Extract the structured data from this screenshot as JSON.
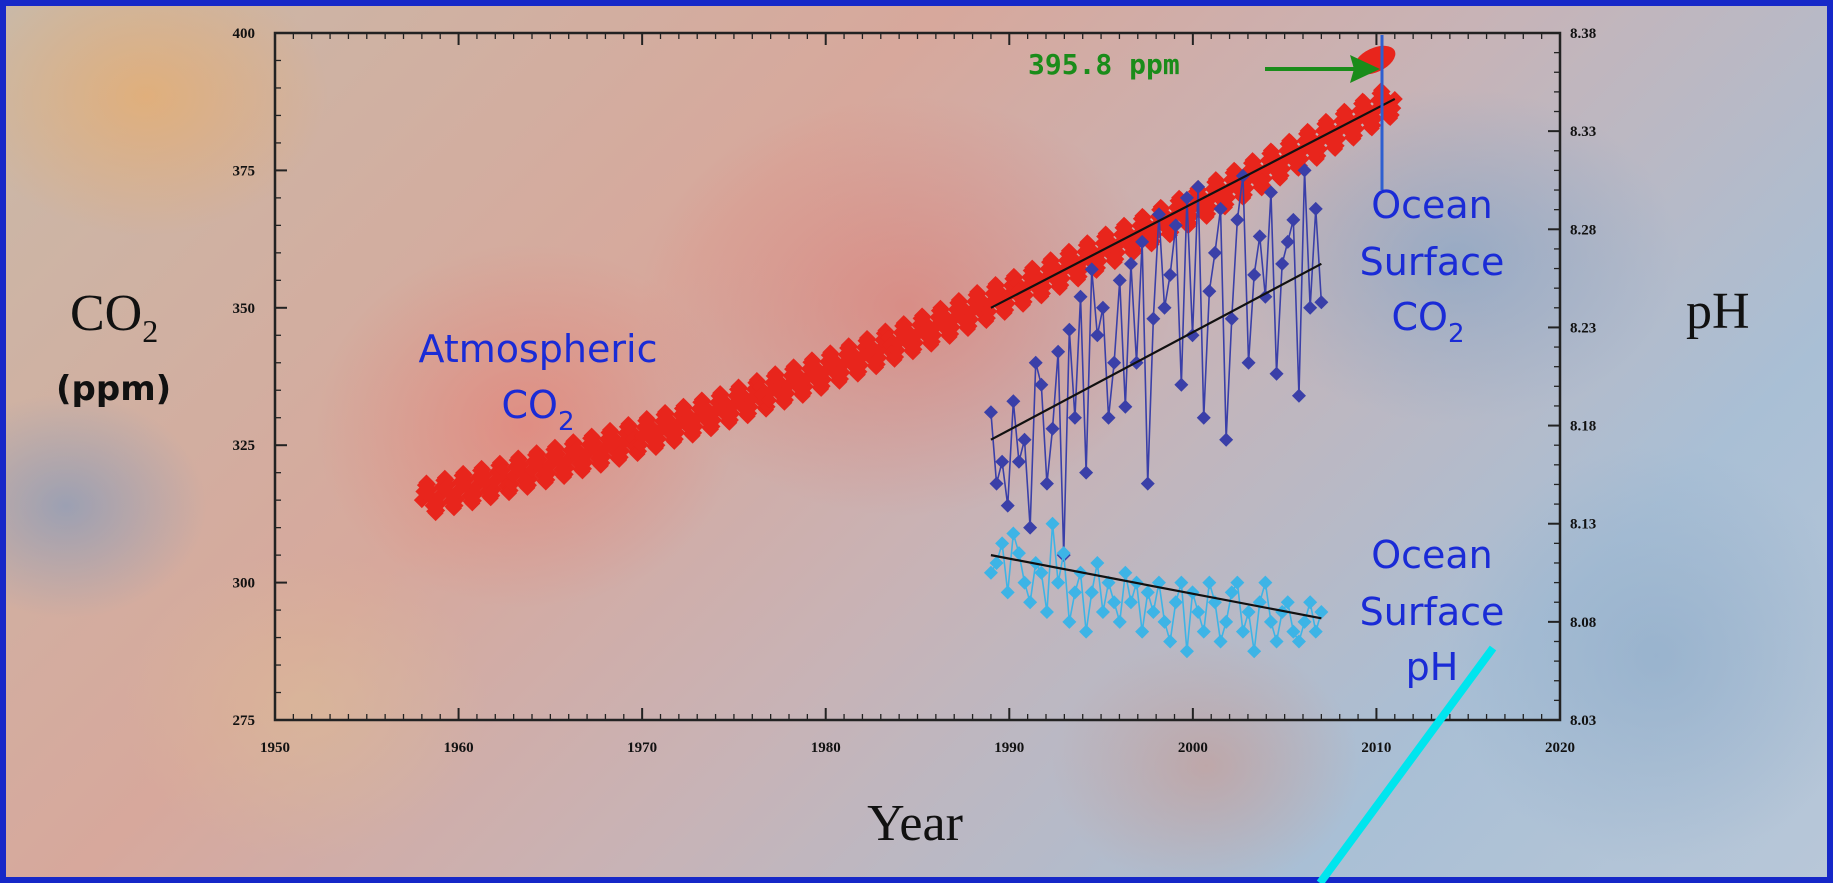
{
  "chart_data": {
    "type": "scatter",
    "xlabel": "Year",
    "ylabel_left": {
      "main": "CO",
      "sub": "2",
      "unit": "(ppm)"
    },
    "ylabel_right": "pH",
    "xlim": [
      1950,
      2020
    ],
    "ylim_left": [
      275,
      400
    ],
    "ylim_right": [
      8.03,
      8.38
    ],
    "x_ticks": [
      "1950",
      "1960",
      "1970",
      "1980",
      "1990",
      "2000",
      "2010",
      "2020"
    ],
    "y_left_ticks": [
      "400",
      "375",
      "350",
      "325",
      "300",
      "275"
    ],
    "y_right_ticks": [
      "8.38",
      "8.33",
      "8.28",
      "8.23",
      "8.18",
      "8.13",
      "8.08",
      "8.03"
    ],
    "annotations": {
      "atmospheric": {
        "line1": "Atmospheric",
        "line2_main": "CO",
        "line2_sub": "2"
      },
      "ocean_co2": {
        "line1": "Ocean",
        "line2": "Surface",
        "line3_main": "CO",
        "line3_sub": "2"
      },
      "ocean_ph": {
        "line1": "Ocean",
        "line2": "Surface",
        "line3": "pH"
      },
      "callout": "395.8 ppm",
      "callout_year": 2011,
      "callout_value": 395.8
    },
    "colors": {
      "atmospheric": "#e8251c",
      "ocean_co2": "#3a3fa8",
      "ocean_ph": "#3db4e6",
      "trend": "#111111",
      "callout": "#1a8c1a",
      "marker_line": "#2e5fd0",
      "annotation_text": "#1a2bd6",
      "cyan_line": "#00e5ee"
    },
    "series": [
      {
        "name": "Atmospheric CO2",
        "axis": "left",
        "trend_start": 315,
        "trend_end": 388,
        "x_start": 1958,
        "x_end": 2011
      },
      {
        "name": "Ocean Surface CO2",
        "axis": "left",
        "x_start": 1989,
        "x_end": 2007,
        "values": [
          331,
          318,
          322,
          314,
          333,
          322,
          326,
          310,
          340,
          336,
          318,
          328,
          342,
          305,
          346,
          330,
          352,
          320,
          357,
          345,
          350,
          330,
          340,
          355,
          332,
          358,
          340,
          362,
          318,
          348,
          367,
          350,
          356,
          365,
          336,
          370,
          345,
          372,
          330,
          353,
          360,
          368,
          326,
          348,
          366,
          374,
          340,
          356,
          363,
          352,
          371,
          338,
          358,
          362,
          366,
          334,
          375,
          350,
          368,
          351
        ]
      },
      {
        "name": "Ocean Surface pH",
        "axis": "right",
        "x_start": 1989,
        "x_end": 2007,
        "values": [
          8.105,
          8.11,
          8.12,
          8.095,
          8.125,
          8.115,
          8.1,
          8.09,
          8.11,
          8.105,
          8.085,
          8.13,
          8.1,
          8.115,
          8.08,
          8.095,
          8.105,
          8.075,
          8.095,
          8.11,
          8.085,
          8.1,
          8.09,
          8.08,
          8.105,
          8.09,
          8.1,
          8.075,
          8.095,
          8.085,
          8.1,
          8.08,
          8.07,
          8.09,
          8.1,
          8.065,
          8.095,
          8.085,
          8.075,
          8.1,
          8.09,
          8.07,
          8.08,
          8.095,
          8.1,
          8.075,
          8.085,
          8.065,
          8.09,
          8.1,
          8.08,
          8.07,
          8.085,
          8.09,
          8.075,
          8.07,
          8.08,
          8.09,
          8.075,
          8.085
        ]
      }
    ],
    "trends": [
      {
        "name": "atmospheric-trend",
        "axis": "left",
        "x": [
          1989,
          2011
        ],
        "y": [
          350,
          388
        ]
      },
      {
        "name": "ocean-co2-trend",
        "axis": "left",
        "x": [
          1989,
          2007
        ],
        "y": [
          326,
          358
        ]
      },
      {
        "name": "ocean-ph-trend",
        "axis": "left",
        "x": [
          1989,
          2007
        ],
        "y": [
          305,
          293.5
        ]
      }
    ]
  }
}
